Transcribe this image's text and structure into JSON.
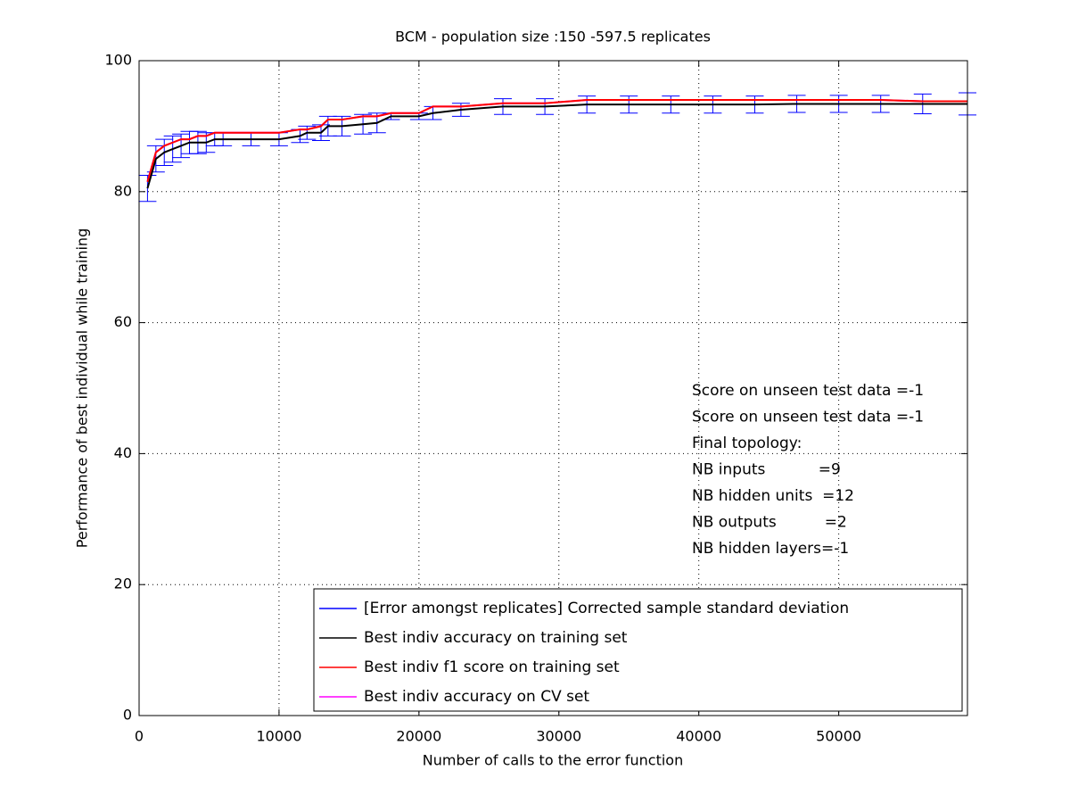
{
  "chart_data": {
    "type": "line",
    "title": "BCM - population size :150 -597.5 replicates",
    "xlabel": "Number of calls to the error function",
    "ylabel": "Performance of best individual while training",
    "x": [
      600,
      1200,
      1800,
      2400,
      3000,
      3600,
      4200,
      4800,
      5400,
      6000,
      8000,
      10000,
      11500,
      12000,
      13000,
      13500,
      14500,
      16000,
      17000,
      18000,
      20000,
      21000,
      23000,
      26000,
      29000,
      32000,
      35000,
      38000,
      41000,
      44000,
      47000,
      50000,
      53000,
      56000,
      59200
    ],
    "series": [
      {
        "name": "[Error amongst replicates] Corrected sample standard deviation",
        "color": "#0000ff",
        "errorbar_of": 1,
        "values": [
          2,
          2,
          2,
          2,
          1.8,
          1.7,
          1.7,
          1.5,
          1,
          1,
          1,
          1,
          1,
          1,
          1.2,
          1.5,
          1.5,
          1.5,
          1.5,
          0.5,
          0.5,
          1,
          1,
          1.2,
          1.2,
          1.3,
          1.3,
          1.3,
          1.3,
          1.3,
          1.3,
          1.3,
          1.3,
          1.5,
          1.7
        ]
      },
      {
        "name": "Best indiv accuracy on training set",
        "color": "#000000",
        "values": [
          80.5,
          85,
          86,
          86.5,
          87,
          87.5,
          87.5,
          87.5,
          88,
          88,
          88,
          88,
          88.5,
          89,
          89,
          90,
          90,
          90.3,
          90.5,
          91.5,
          91.5,
          92,
          92.5,
          93,
          93,
          93.3,
          93.3,
          93.3,
          93.3,
          93.3,
          93.4,
          93.4,
          93.4,
          93.4,
          93.4
        ]
      },
      {
        "name": "Best indiv f1 score on training set",
        "color": "#ff0000",
        "values": [
          81.5,
          86,
          87,
          87.5,
          88,
          88,
          88.5,
          88.5,
          89,
          89,
          89,
          89,
          89.5,
          89.5,
          90,
          91,
          91,
          91.5,
          91.5,
          92,
          92,
          93,
          93,
          93.5,
          93.5,
          94,
          94,
          94,
          94,
          94,
          94,
          94,
          94,
          93.8,
          93.8
        ]
      },
      {
        "name": "Best indiv accuracy on CV set",
        "color": "#ff00ff",
        "values": [
          81.5,
          86,
          87,
          87.5,
          88,
          88,
          88.5,
          88.5,
          89,
          89,
          89,
          89,
          89.5,
          89.5,
          90,
          91,
          91,
          91.5,
          91.5,
          92,
          92,
          93,
          93,
          93.5,
          93.5,
          94,
          94,
          94,
          94,
          94,
          94,
          94,
          94,
          93.8,
          93.8
        ]
      }
    ],
    "annotations": [
      "Score on unseen test data =-1",
      "Score on unseen test data =-1",
      "Final topology:",
      "NB inputs           =9",
      "NB hidden units  =12",
      "NB outputs          =2",
      "NB hidden layers=-1"
    ],
    "xlim": [
      0,
      59200
    ],
    "ylim": [
      0,
      100
    ],
    "xticks": [
      0,
      10000,
      20000,
      30000,
      40000,
      50000
    ],
    "yticks": [
      0,
      20,
      40,
      60,
      80,
      100
    ],
    "grid": true
  }
}
